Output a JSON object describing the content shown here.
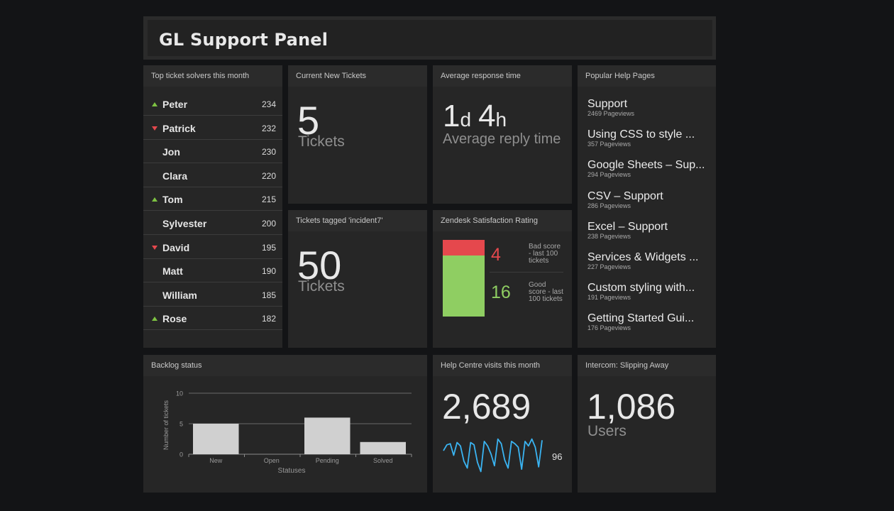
{
  "header": {
    "title": "GL Support Panel"
  },
  "leaderboard": {
    "title": "Top ticket solvers this month",
    "rows": [
      {
        "name": "Peter",
        "value": "234",
        "trend": "up"
      },
      {
        "name": "Patrick",
        "value": "232",
        "trend": "down"
      },
      {
        "name": "Jon",
        "value": "230",
        "trend": "none"
      },
      {
        "name": "Clara",
        "value": "220",
        "trend": "none"
      },
      {
        "name": "Tom",
        "value": "215",
        "trend": "up"
      },
      {
        "name": "Sylvester",
        "value": "200",
        "trend": "none"
      },
      {
        "name": "David",
        "value": "195",
        "trend": "down"
      },
      {
        "name": "Matt",
        "value": "190",
        "trend": "none"
      },
      {
        "name": "William",
        "value": "185",
        "trend": "none"
      },
      {
        "name": "Rose",
        "value": "182",
        "trend": "up"
      }
    ]
  },
  "new_tickets": {
    "title": "Current New Tickets",
    "value": "5",
    "unit": "Tickets"
  },
  "response_time": {
    "title": "Average response time",
    "days": "1",
    "days_unit": "d",
    "hours": "4",
    "hours_unit": "h",
    "subtitle": "Average reply time"
  },
  "tagged": {
    "title": "Tickets tagged 'incident7'",
    "value": "50",
    "unit": "Tickets"
  },
  "satisfaction": {
    "title": "Zendesk Satisfaction Rating",
    "bad_value": "4",
    "bad_label": "Bad score - last 100 tickets",
    "good_value": "16",
    "good_label": "Good score - last 100 tickets",
    "colors": {
      "bad": "#e5484d",
      "good": "#8fce62"
    }
  },
  "popular_pages": {
    "title": "Popular Help Pages",
    "items": [
      {
        "title": "Support",
        "views": "2469 Pageviews"
      },
      {
        "title": "Using CSS to style ...",
        "views": "357 Pageviews"
      },
      {
        "title": "Google Sheets – Sup...",
        "views": "294 Pageviews"
      },
      {
        "title": "CSV – Support",
        "views": "286 Pageviews"
      },
      {
        "title": "Excel – Support",
        "views": "238 Pageviews"
      },
      {
        "title": "Services & Widgets ...",
        "views": "227 Pageviews"
      },
      {
        "title": "Custom styling with...",
        "views": "191 Pageviews"
      },
      {
        "title": "Getting Started Gui...",
        "views": "176 Pageviews"
      }
    ]
  },
  "backlog": {
    "title": "Backlog status"
  },
  "chart_data": [
    {
      "type": "bar",
      "title": "Backlog status",
      "categories": [
        "New",
        "Open",
        "Pending",
        "Solved"
      ],
      "values": [
        5,
        0,
        6,
        2
      ],
      "xlabel": "Statuses",
      "ylabel": "Number of tickets",
      "ylim": [
        0,
        10
      ],
      "yticks": [
        "0",
        "5",
        "10"
      ],
      "grid": true,
      "bar_color": "#d0d0d0"
    },
    {
      "type": "line",
      "title": "Help Centre visits this month",
      "values": [
        78,
        88,
        90,
        70,
        92,
        86,
        60,
        48,
        92,
        88,
        58,
        42,
        94,
        86,
        72,
        52,
        98,
        90,
        62,
        48,
        94,
        90,
        84,
        46,
        94,
        86,
        98,
        84,
        50,
        96
      ],
      "ylim": [
        40,
        100
      ],
      "color": "#3ab4f2"
    }
  ],
  "visits": {
    "title": "Help Centre visits this month",
    "value": "2,689",
    "latest": "96"
  },
  "intercom": {
    "title": "Intercom: Slipping Away",
    "value": "1,086",
    "unit": "Users"
  }
}
